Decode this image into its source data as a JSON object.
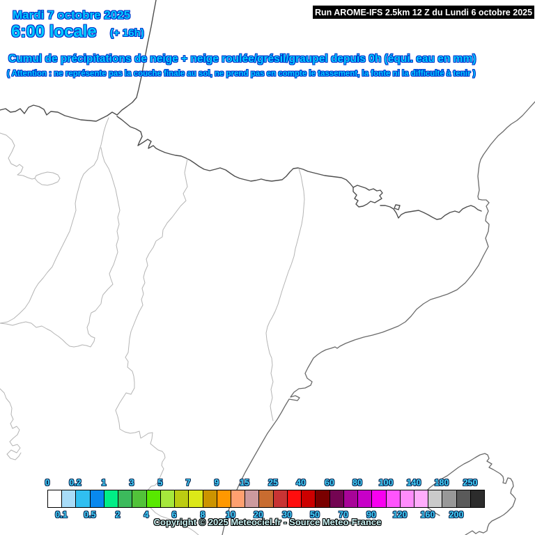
{
  "header": {
    "date_line": "Mardi 7 octobre 2025",
    "time_line": "6:00 locale",
    "offset": "(+ 16h)",
    "run_info": "Run AROME-IFS 2.5km 12 Z du Lundi 6 octobre 2025"
  },
  "title": "Cumul de précipitations de neige + neige roulée/grésil/graupel depuis 0h (équi. eau en mm)",
  "subtitle": "( Attention : ne représente pas la couche finale au sol, ne prend pas en compte le tassement, la fonte ni la difficulté à tenir )",
  "footer": {
    "copyright": "Copyright © 2025 Meteociel.fr - Source Meteo-France"
  },
  "colors": {
    "header_text_fill": "#00CCFF",
    "header_text_outline": "#0033CC",
    "run_box_bg": "#000000",
    "run_box_text": "#FFFFFF",
    "legend_label_fill": "#44D4FF",
    "legend_label_outline": "#0A2A55",
    "copyright_fill": "#C8F2F2",
    "copyright_outline": "#000000",
    "coastline": "#4D4D4D",
    "inner_border": "#B4B4B4",
    "map_background": "#FFFFFF"
  },
  "legend": {
    "unit": "mm (équivalent eau)",
    "entries": [
      {
        "value": "0",
        "color": "#FFFFFF"
      },
      {
        "value": "0.1",
        "color": "#A8DCF8"
      },
      {
        "value": "0.2",
        "color": "#30BFF0"
      },
      {
        "value": "0.5",
        "color": "#0888EE"
      },
      {
        "value": "1",
        "color": "#00EE86"
      },
      {
        "value": "2",
        "color": "#3CBA5C"
      },
      {
        "value": "3",
        "color": "#52C23A"
      },
      {
        "value": "4",
        "color": "#58E800"
      },
      {
        "value": "5",
        "color": "#A6E83C"
      },
      {
        "value": "6",
        "color": "#BCCC12"
      },
      {
        "value": "7",
        "color": "#DCE818"
      },
      {
        "value": "8",
        "color": "#CC9400"
      },
      {
        "value": "9",
        "color": "#FF9800"
      },
      {
        "value": "10",
        "color": "#FFA070"
      },
      {
        "value": "15",
        "color": "#CC9A9E"
      },
      {
        "value": "20",
        "color": "#C86C30"
      },
      {
        "value": "25",
        "color": "#C83434"
      },
      {
        "value": "30",
        "color": "#FF0E0E"
      },
      {
        "value": "40",
        "color": "#CC0000"
      },
      {
        "value": "50",
        "color": "#7A0000"
      },
      {
        "value": "60",
        "color": "#740452"
      },
      {
        "value": "70",
        "color": "#A80498"
      },
      {
        "value": "80",
        "color": "#C800C8"
      },
      {
        "value": "90",
        "color": "#F800F0"
      },
      {
        "value": "100",
        "color": "#FF54FC"
      },
      {
        "value": "120",
        "color": "#FF8CFC"
      },
      {
        "value": "140",
        "color": "#FFACFC"
      },
      {
        "value": "160",
        "color": "#CACACA"
      },
      {
        "value": "180",
        "color": "#989898"
      },
      {
        "value": "200",
        "color": "#5A5A5A"
      },
      {
        "value": "250",
        "color": "#2C2C2C"
      }
    ]
  }
}
